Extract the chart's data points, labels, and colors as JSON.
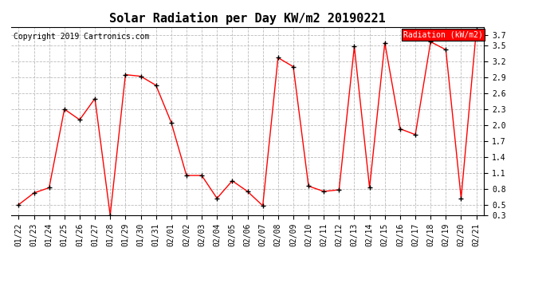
{
  "title": "Solar Radiation per Day KW/m2 20190221",
  "copyright": "Copyright 2019 Cartronics.com",
  "legend_label": "Radiation (kW/m2)",
  "dates": [
    "01/22",
    "01/23",
    "01/24",
    "01/25",
    "01/26",
    "01/27",
    "01/28",
    "01/29",
    "01/30",
    "01/31",
    "02/01",
    "02/02",
    "02/03",
    "02/04",
    "02/05",
    "02/06",
    "02/07",
    "02/08",
    "02/09",
    "02/10",
    "02/11",
    "02/12",
    "02/13",
    "02/14",
    "02/15",
    "02/16",
    "02/17",
    "02/18",
    "02/19",
    "02/20",
    "02/21"
  ],
  "values": [
    0.5,
    0.72,
    0.82,
    2.3,
    2.1,
    2.5,
    0.3,
    2.95,
    2.92,
    2.75,
    2.05,
    1.05,
    1.05,
    0.62,
    0.95,
    0.75,
    0.48,
    3.27,
    3.1,
    0.85,
    0.75,
    0.78,
    3.48,
    0.82,
    3.55,
    1.93,
    1.82,
    3.57,
    3.42,
    0.62,
    3.8
  ],
  "line_color": "#FF0000",
  "marker_color": "#000000",
  "background_color": "#FFFFFF",
  "plot_bg_color": "#FFFFFF",
  "grid_color": "#BBBBBB",
  "ylim": [
    0.3,
    3.85
  ],
  "yticks": [
    0.3,
    0.5,
    0.8,
    1.1,
    1.4,
    1.7,
    2.0,
    2.3,
    2.6,
    2.9,
    3.2,
    3.5,
    3.7
  ],
  "legend_bg": "#FF0000",
  "legend_text_color": "#FFFFFF",
  "title_fontsize": 11,
  "tick_fontsize": 7,
  "copyright_fontsize": 7
}
